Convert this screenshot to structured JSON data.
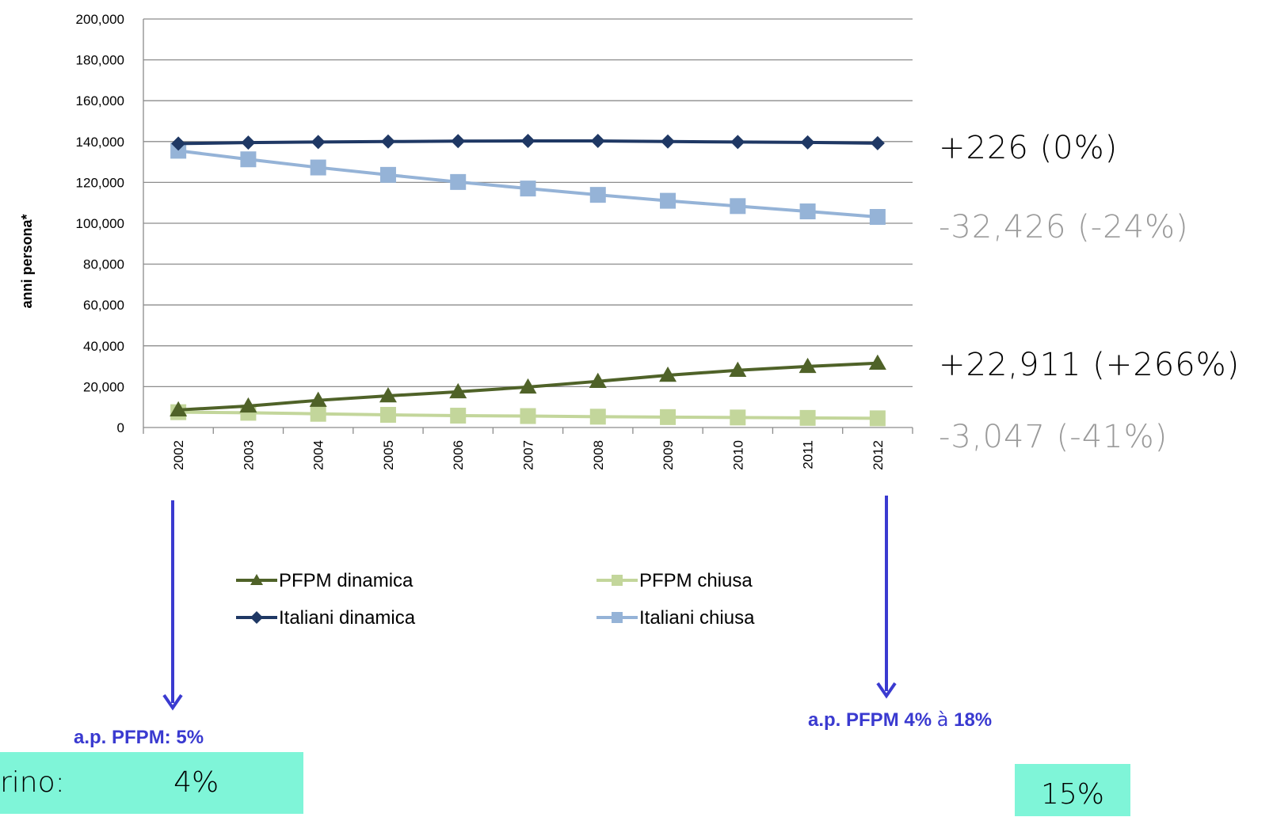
{
  "chart_data": {
    "type": "line",
    "title": "",
    "xlabel": "",
    "ylabel": "anni persona*",
    "ylim": [
      0,
      200000
    ],
    "yticks": [
      "0",
      "20,000",
      "40,000",
      "60,000",
      "80,000",
      "100,000",
      "120,000",
      "140,000",
      "160,000",
      "180,000",
      "200,000"
    ],
    "grid": true,
    "legend_position": "bottom",
    "categories": [
      "2002",
      "2003",
      "2004",
      "2005",
      "2006",
      "2007",
      "2008",
      "2009",
      "2010",
      "2011",
      "2012"
    ],
    "series": [
      {
        "name": "PFPM dinamica",
        "color": "#4f6228",
        "marker": "triangle",
        "values": [
          8600,
          10500,
          13300,
          15500,
          17500,
          19800,
          22600,
          25600,
          28000,
          29900,
          31500
        ]
      },
      {
        "name": "PFPM chiusa",
        "color": "#c3d69b",
        "marker": "square",
        "values": [
          7500,
          7200,
          6700,
          6200,
          5800,
          5600,
          5300,
          5100,
          4900,
          4700,
          4500
        ]
      },
      {
        "name": "Italiani dinamica",
        "color": "#1f3864",
        "marker": "diamond",
        "values": [
          139000,
          139500,
          139800,
          140000,
          140200,
          140300,
          140300,
          140000,
          139800,
          139600,
          139200
        ]
      },
      {
        "name": "Italiani chiusa",
        "color": "#95b3d7",
        "marker": "square",
        "values": [
          135500,
          131300,
          127300,
          123700,
          120200,
          117000,
          113900,
          111000,
          108400,
          105800,
          103100
        ]
      }
    ],
    "annotations": [
      {
        "text": "+226 (0%)",
        "color": "#000000",
        "series": "Italiani dinamica"
      },
      {
        "text": "-32,426 (-24%)",
        "color": "#9a9a9a",
        "series": "Italiani chiusa"
      },
      {
        "text": "+22,911 (+266%)",
        "color": "#000000",
        "series": "PFPM dinamica"
      },
      {
        "text": "-3,047 (-41%)",
        "color": "#9a9a9a",
        "series": "PFPM chiusa"
      }
    ]
  },
  "callouts": {
    "left": {
      "label": "a.p. PFPM: 5%",
      "box_text": "rino:            4%"
    },
    "right": {
      "label_bold": "a.p. PFPM 4%",
      "arrow_glyph": "à",
      "label_end": "18%",
      "box_text": "15%"
    },
    "arrow_color": "#3a3ad0",
    "box_color": "#7ff5d8"
  }
}
